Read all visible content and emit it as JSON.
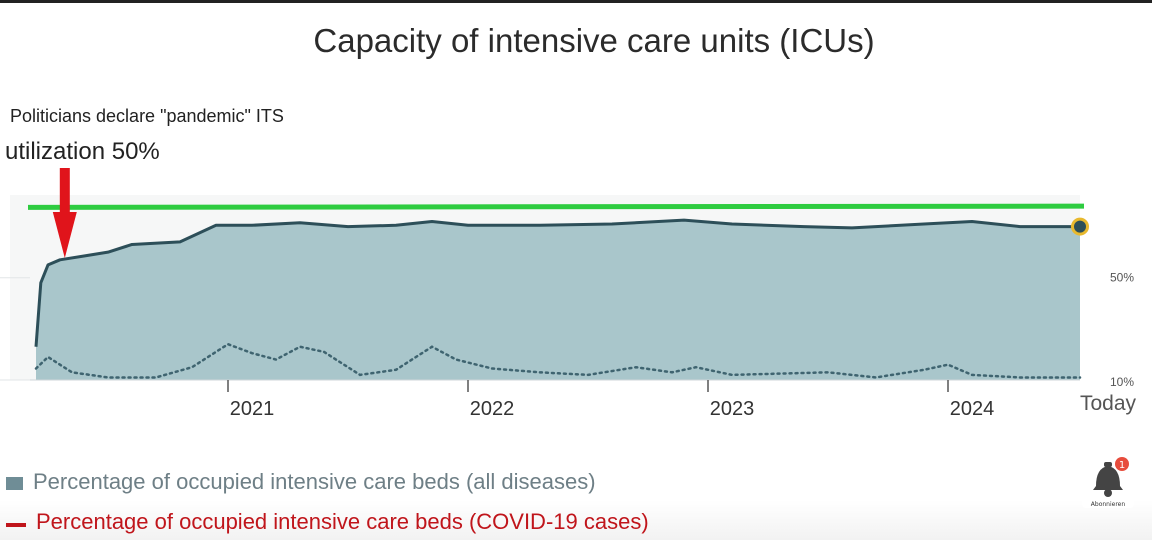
{
  "notes": {
    "line1": "Politicians declare \"pandemic\" ITS",
    "line2": "utilization 50%"
  },
  "legend": {
    "all": "Percentage of occupied intensive care beds (all diseases)",
    "covid": "Percentage of occupied intensive care beds (COVID-19 cases)"
  },
  "subscribe": {
    "label": "Abonnieren",
    "badge": "1"
  },
  "colors": {
    "area_fill": "#a9c6cb",
    "area_edge": "#2d4f59",
    "capacity_line": "#2ecc40",
    "covid_line": "#3f6470",
    "arrow": "#e0141b",
    "marker_fill": "#2d4f59",
    "marker_ring": "#e8b92e"
  },
  "chart_data": {
    "type": "area",
    "title": "Capacity of intensive care units (ICUs)",
    "xlabel": "",
    "ylabel": "",
    "x_domain": [
      2020.2,
      2024.55
    ],
    "ylim": [
      10,
      80
    ],
    "x_ticks": [
      {
        "value": 2021,
        "label": "2021"
      },
      {
        "value": 2022,
        "label": "2022"
      },
      {
        "value": 2023,
        "label": "2023"
      },
      {
        "value": 2024,
        "label": "2024"
      },
      {
        "value": 2024.55,
        "label": "Today"
      }
    ],
    "y_ticks": [
      {
        "value": 50,
        "label": "50%"
      },
      {
        "value": 10,
        "label": "10%"
      }
    ],
    "capacity_line": {
      "x": [
        2020.2,
        2024.55
      ],
      "y": [
        77.5,
        78
      ]
    },
    "annotation_arrow_x": 2020.32,
    "series": [
      {
        "name": "Percentage of occupied intensive care beds (all diseases)",
        "x": [
          2020.2,
          2020.22,
          2020.25,
          2020.3,
          2020.4,
          2020.5,
          2020.6,
          2020.8,
          2020.95,
          2021.1,
          2021.3,
          2021.5,
          2021.7,
          2021.85,
          2022.0,
          2022.3,
          2022.6,
          2022.9,
          2023.1,
          2023.4,
          2023.6,
          2023.9,
          2024.1,
          2024.3,
          2024.55
        ],
        "y": [
          23,
          48,
          55,
          57,
          58.5,
          60,
          63,
          64,
          70.5,
          70.5,
          71.5,
          70,
          70.5,
          72,
          70.5,
          70.5,
          71,
          72.5,
          71,
          70,
          69.5,
          71,
          72,
          70,
          70
        ]
      },
      {
        "name": "Percentage of occupied intensive care beds (COVID-19 cases)",
        "x": [
          2020.2,
          2020.25,
          2020.35,
          2020.5,
          2020.7,
          2020.85,
          2021.0,
          2021.1,
          2021.2,
          2021.3,
          2021.4,
          2021.55,
          2021.7,
          2021.85,
          2021.95,
          2022.1,
          2022.3,
          2022.5,
          2022.7,
          2022.85,
          2022.95,
          2023.1,
          2023.3,
          2023.5,
          2023.7,
          2023.9,
          2024.0,
          2024.1,
          2024.3,
          2024.55
        ],
        "y": [
          14.5,
          19,
          13,
          11,
          11,
          15,
          24,
          20.5,
          18,
          23,
          21,
          12,
          14,
          23,
          18,
          14.5,
          13,
          12,
          15,
          13,
          15,
          12,
          12.5,
          13,
          11,
          14,
          16,
          12,
          11,
          11
        ]
      }
    ]
  }
}
